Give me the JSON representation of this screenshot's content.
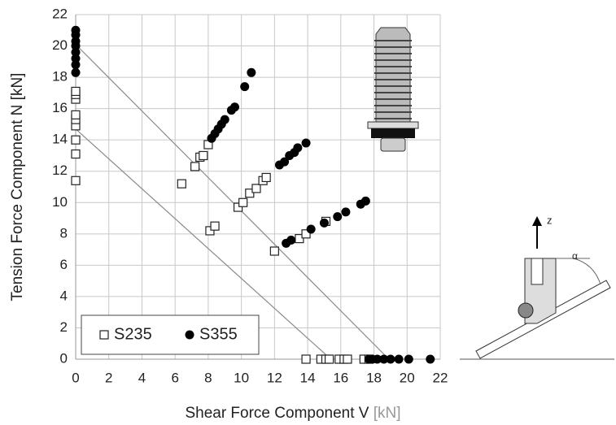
{
  "chart_data": {
    "type": "scatter",
    "x_label": "Shear Force Component V",
    "x_unit": "[kN]",
    "y_label": "Tension Force Component N [kN]",
    "xlim": [
      0,
      22
    ],
    "ylim": [
      0,
      22
    ],
    "xticks": [
      0,
      2,
      4,
      6,
      8,
      10,
      12,
      14,
      16,
      18,
      20,
      22
    ],
    "yticks": [
      0,
      2,
      4,
      6,
      8,
      10,
      12,
      14,
      16,
      18,
      20,
      22
    ],
    "grid": true,
    "legend": "lower left",
    "series": [
      {
        "name": "S235",
        "marker": "square",
        "color": "#222222",
        "x": [
          0,
          0,
          0,
          0,
          0,
          0,
          0,
          0,
          0,
          6.4,
          7.2,
          7.5,
          7.7,
          8.0,
          8.1,
          8.4,
          9.8,
          10.1,
          10.5,
          10.9,
          11.3,
          11.5,
          12.0,
          13.5,
          13.9,
          15.1,
          13.9,
          14.8,
          15.1,
          15.3,
          15.9,
          16.2,
          16.4,
          17.4,
          17.7
        ],
        "values": [
          11.4,
          13.1,
          14.0,
          14.9,
          15.3,
          15.6,
          16.6,
          16.9,
          17.1,
          11.2,
          12.3,
          12.9,
          13.0,
          13.7,
          8.2,
          8.5,
          9.7,
          10.0,
          10.6,
          10.9,
          11.4,
          11.6,
          6.9,
          7.7,
          8.0,
          8.8,
          0,
          0,
          0,
          0,
          0,
          0,
          0,
          0,
          0
        ]
      },
      {
        "name": "S355",
        "marker": "circle",
        "color": "#000000",
        "x": [
          0,
          0,
          0,
          0,
          0,
          0,
          0,
          0,
          8.2,
          8.4,
          8.6,
          8.8,
          9.0,
          9.4,
          9.6,
          10.2,
          10.6,
          12.3,
          12.6,
          12.9,
          13.2,
          13.4,
          13.9,
          12.7,
          13.0,
          14.2,
          15.0,
          15.8,
          16.3,
          17.2,
          17.5,
          17.7,
          17.9,
          18.2,
          18.6,
          19.0,
          19.5,
          20.1,
          21.4
        ],
        "values": [
          18.3,
          18.8,
          19.2,
          19.6,
          20.0,
          20.3,
          20.7,
          21.0,
          14.1,
          14.4,
          14.7,
          15.0,
          15.3,
          15.9,
          16.1,
          17.4,
          18.3,
          12.4,
          12.6,
          13.0,
          13.2,
          13.5,
          13.8,
          7.4,
          7.6,
          8.3,
          8.7,
          9.1,
          9.4,
          9.9,
          10.1,
          0,
          0,
          0,
          0,
          0,
          0,
          0,
          0
        ]
      }
    ],
    "reference_lines": [
      {
        "x": [
          0,
          18.9
        ],
        "values": [
          20.1,
          0
        ]
      },
      {
        "x": [
          0,
          15.4
        ],
        "values": [
          14.7,
          0
        ]
      }
    ]
  },
  "diagram": {
    "z_label": "z",
    "angle_label": "α"
  }
}
